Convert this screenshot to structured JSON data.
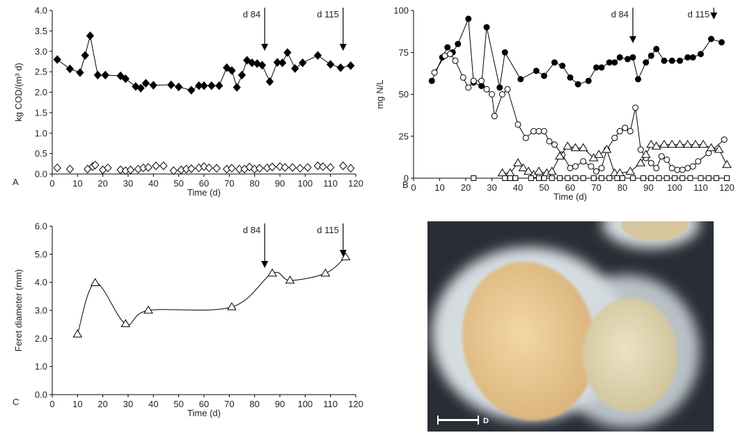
{
  "chart_data": [
    {
      "type": "scatter",
      "panel": "A",
      "xlabel": "Time (d)",
      "ylabel": "kg COD/(m³ d)",
      "xlim": [
        0,
        120
      ],
      "xticks": [
        0,
        10,
        20,
        30,
        40,
        50,
        60,
        70,
        80,
        90,
        100,
        110,
        120
      ],
      "ylim": [
        0,
        4
      ],
      "yticks": [
        {
          "value": 0,
          "label": "0.0"
        },
        {
          "value": 0.5,
          "label": "0.5"
        },
        {
          "value": 1,
          "label": "1.0"
        },
        {
          "value": 1.5,
          "label": "1.5"
        },
        {
          "value": 2,
          "label": "2.0"
        },
        {
          "value": 2.5,
          "label": "2.5"
        },
        {
          "value": 3,
          "label": "3.0"
        },
        {
          "value": 3.5,
          "label": "3.5"
        },
        {
          "value": 4,
          "label": "4.0"
        }
      ],
      "annotations": [
        {
          "text": "d 84",
          "x": 84
        },
        {
          "text": "d 115",
          "x": 115
        }
      ],
      "series": [
        {
          "color": "#000000",
          "marker": "diamond",
          "filled": true,
          "line": true,
          "x": [
            2,
            7,
            11,
            13,
            15,
            18,
            21,
            27,
            29,
            33,
            35,
            37,
            40,
            47,
            50,
            55,
            58,
            60,
            63,
            66,
            69,
            71,
            73,
            75,
            77,
            79,
            81,
            83,
            86,
            89,
            91,
            93,
            96,
            99,
            105,
            110,
            114,
            118
          ],
          "values": [
            2.8,
            2.57,
            2.48,
            2.9,
            3.38,
            2.42,
            2.42,
            2.4,
            2.33,
            2.14,
            2.1,
            2.22,
            2.17,
            2.18,
            2.13,
            2.05,
            2.16,
            2.16,
            2.16,
            2.16,
            2.6,
            2.53,
            2.12,
            2.42,
            2.78,
            2.72,
            2.7,
            2.66,
            2.26,
            2.73,
            2.72,
            2.97,
            2.58,
            2.72,
            2.9,
            2.68,
            2.6,
            2.65
          ]
        },
        {
          "color": "#000000",
          "marker": "diamond",
          "filled": false,
          "line": false,
          "x": [
            2,
            7,
            14,
            16,
            17,
            20,
            22,
            27,
            29,
            31,
            34,
            36,
            38,
            41,
            44,
            48,
            51,
            53,
            55,
            58,
            60,
            62,
            65,
            69,
            71,
            74,
            76,
            78,
            80,
            82,
            85,
            87,
            90,
            92,
            95,
            98,
            101,
            105,
            107,
            110,
            115,
            118
          ],
          "values": [
            0.15,
            0.12,
            0.12,
            0.18,
            0.22,
            0.1,
            0.15,
            0.1,
            0.08,
            0.1,
            0.12,
            0.15,
            0.16,
            0.2,
            0.2,
            0.08,
            0.1,
            0.12,
            0.13,
            0.15,
            0.18,
            0.15,
            0.14,
            0.12,
            0.14,
            0.12,
            0.12,
            0.17,
            0.12,
            0.14,
            0.15,
            0.17,
            0.18,
            0.16,
            0.16,
            0.14,
            0.16,
            0.2,
            0.18,
            0.16,
            0.2,
            0.14
          ]
        }
      ]
    },
    {
      "type": "scatter",
      "panel": "B",
      "xlabel": "Time (d)",
      "ylabel": "mg N/L",
      "xlim": [
        0,
        120
      ],
      "xticks": [
        0,
        10,
        20,
        30,
        40,
        50,
        60,
        70,
        80,
        90,
        100,
        110,
        120
      ],
      "ylim": [
        0,
        100
      ],
      "yticks": [
        0,
        25,
        50,
        75,
        100
      ],
      "annotations": [
        {
          "text": "d 84",
          "x": 84
        },
        {
          "text": "d 115",
          "x": 115
        }
      ],
      "series": [
        {
          "color": "#000000",
          "marker": "circle",
          "filled": true,
          "line": true,
          "x": [
            7,
            11,
            13,
            15,
            17,
            21,
            23,
            26,
            28,
            33,
            35,
            41,
            47,
            50,
            54,
            57,
            60,
            63,
            67,
            70,
            72,
            75,
            77,
            79,
            82,
            84,
            86,
            89,
            91,
            93,
            96,
            99,
            102,
            105,
            107,
            110,
            114,
            118
          ],
          "values": [
            58,
            72,
            78,
            75,
            80,
            95,
            57,
            55,
            90,
            54,
            75,
            59,
            64,
            61,
            69,
            67,
            60,
            56,
            58,
            66,
            66,
            69,
            69,
            72,
            71,
            72,
            59,
            69,
            73,
            77,
            70,
            70,
            70,
            72,
            72,
            74,
            83,
            81
          ]
        },
        {
          "color": "#000000",
          "marker": "circle",
          "filled": false,
          "line": true,
          "x": [
            8,
            12,
            14,
            16,
            19,
            21,
            23,
            26,
            28,
            30,
            31,
            34,
            36,
            40,
            43,
            46,
            48,
            50,
            52,
            54,
            57,
            60,
            62,
            65,
            68,
            70,
            72,
            74,
            77,
            79,
            81,
            83,
            85,
            87,
            89,
            91,
            93,
            95,
            97,
            99,
            101,
            103,
            105,
            107,
            109,
            113,
            119
          ],
          "values": [
            63,
            73,
            74,
            70,
            60,
            54,
            58,
            58,
            53,
            50,
            37,
            50,
            53,
            32,
            24,
            28,
            28,
            28,
            22,
            20,
            14,
            6,
            7,
            10,
            7,
            4,
            6,
            17,
            24,
            28,
            30,
            28,
            42,
            17,
            12,
            9,
            6,
            13,
            11,
            6,
            5,
            5,
            6,
            7,
            10,
            15,
            23
          ]
        },
        {
          "color": "#000000",
          "marker": "triangle",
          "filled": false,
          "line": true,
          "x": [
            34,
            37,
            40,
            42,
            44,
            46,
            48,
            51,
            53,
            56,
            59,
            62,
            65,
            69,
            71,
            74,
            77,
            79,
            83,
            87,
            89,
            91,
            93,
            96,
            99,
            102,
            105,
            108,
            111,
            114,
            117,
            120
          ],
          "values": [
            3,
            3,
            9,
            6,
            4,
            2,
            4,
            3,
            4,
            13,
            19,
            18,
            18,
            12,
            14,
            17,
            3,
            3,
            4,
            9,
            14,
            20,
            19,
            20,
            20,
            20,
            20,
            20,
            20,
            18,
            17,
            8
          ]
        },
        {
          "color": "#000000",
          "marker": "square",
          "filled": false,
          "line": true,
          "x": [
            23,
            35,
            37,
            39,
            45,
            48,
            50,
            53,
            56,
            59,
            62,
            65,
            69,
            72,
            75,
            78,
            80,
            84,
            88,
            91,
            94,
            97,
            100,
            103,
            106,
            110,
            113,
            116,
            120
          ],
          "values": [
            0,
            0,
            0,
            0,
            0,
            0,
            0,
            0,
            0,
            0,
            0,
            0,
            0,
            0,
            0,
            0,
            0,
            0,
            0,
            0,
            0,
            0,
            0,
            0,
            0,
            0,
            0,
            0,
            0
          ]
        }
      ]
    },
    {
      "type": "scatter",
      "panel": "C",
      "xlabel": "Time (d)",
      "ylabel": "Feret diameter (mm)",
      "xlim": [
        0,
        120
      ],
      "xticks": [
        0,
        10,
        20,
        30,
        40,
        50,
        60,
        70,
        80,
        90,
        100,
        110,
        120
      ],
      "ylim": [
        0,
        6
      ],
      "yticks": [
        {
          "value": 0,
          "label": "0.0"
        },
        {
          "value": 1,
          "label": "1.0"
        },
        {
          "value": 2,
          "label": "2.0"
        },
        {
          "value": 3,
          "label": "3.0"
        },
        {
          "value": 4,
          "label": "4.0"
        },
        {
          "value": 5,
          "label": "5.0"
        },
        {
          "value": 6,
          "label": "6.0"
        }
      ],
      "annotations": [
        {
          "text": "d 84",
          "x": 84
        },
        {
          "text": "d 115",
          "x": 115
        }
      ],
      "series": [
        {
          "color": "#000000",
          "marker": "triangle",
          "filled": false,
          "line": true,
          "smooth": true,
          "x": [
            10,
            17,
            29,
            38,
            71,
            87,
            94,
            108,
            116
          ],
          "values": [
            2.15,
            3.98,
            2.52,
            3.0,
            3.12,
            4.32,
            4.07,
            4.32,
            4.9
          ]
        }
      ]
    }
  ],
  "photo": {
    "label": "D"
  }
}
